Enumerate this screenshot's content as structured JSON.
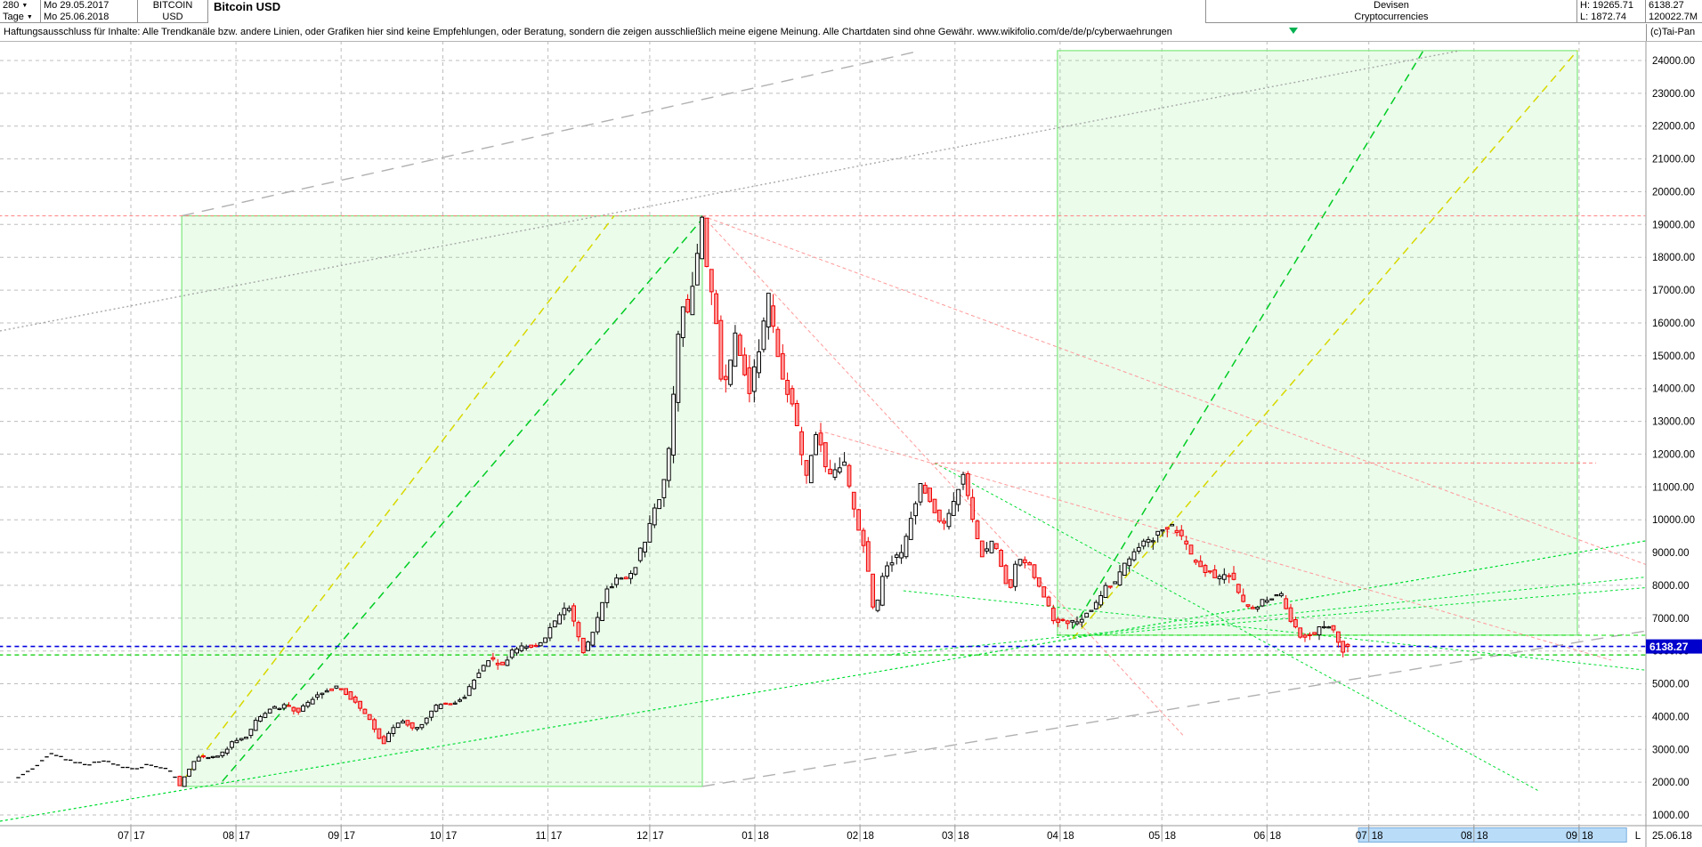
{
  "header": {
    "bars": "280",
    "period": "Tage",
    "date_from": "Mo 29.05.2017",
    "date_to": "Mo 25.06.2018",
    "symbol_line1": "BITCOIN",
    "symbol_line2": "USD",
    "title": "Bitcoin USD",
    "category_line1": "Devisen",
    "category_line2": "Cryptocurrencies",
    "high_label": "H: 19265.71",
    "low_label": "L: 1872.74",
    "last_price": "6138.27",
    "volume": "120022.7M",
    "copyright": "(c)Tai-Pan"
  },
  "disclaimer": "Haftungsausschluss für Inhalte: Alle Trendkanäle bzw. andere Linien, oder Grafiken hier sind keine Empfehlungen, oder Beratung, sondern die zeigen ausschließlich meine eigene Meinung. Alle Chartdaten sind ohne Gewähr.  www.wikifolio.com/de/de/p/cyberwaehrungen",
  "y_axis": {
    "min": 1000,
    "max": 24000,
    "step": 1000,
    "decimals": 2,
    "price_tag": "6138.27"
  },
  "x_axis": {
    "months": [
      {
        "label": "07 17",
        "d": 0
      },
      {
        "label": "08 17",
        "d": 31
      },
      {
        "label": "09 17",
        "d": 62
      },
      {
        "label": "10 17",
        "d": 92
      },
      {
        "label": "11 17",
        "d": 123
      },
      {
        "label": "12 17",
        "d": 153
      },
      {
        "label": "01 18",
        "d": 184
      },
      {
        "label": "02 18",
        "d": 215
      },
      {
        "label": "03 18",
        "d": 243
      },
      {
        "label": "04 18",
        "d": 274
      },
      {
        "label": "05 18",
        "d": 304
      },
      {
        "label": "06 18",
        "d": 335
      },
      {
        "label": "07 18",
        "d": 365
      },
      {
        "label": "08 18",
        "d": 396
      },
      {
        "label": "09 18",
        "d": 427
      }
    ],
    "future_highlight": {
      "d1": 362,
      "d2": 441,
      "labels": [
        "07 18",
        "08 18",
        "09 18"
      ]
    },
    "scale_label": "L",
    "last_date": "25.06.18"
  },
  "chart_data": {
    "type": "candlestick",
    "title": "Bitcoin USD",
    "instrument": "BITCOIN USD",
    "bars": 280,
    "range_high": 19265.71,
    "range_low": 1872.74,
    "last_close": 6138.27,
    "x_unit": "days since 2017-07-01 (weekday bars)",
    "ylim": [
      1000,
      24000
    ],
    "grid": true,
    "keyframes": [
      [
        -33,
        2150
      ],
      [
        -28,
        2420
      ],
      [
        -23,
        2880
      ],
      [
        -19,
        2750
      ],
      [
        -16,
        2620
      ],
      [
        -12,
        2560
      ],
      [
        -8,
        2680
      ],
      [
        -5,
        2590
      ],
      [
        -2,
        2480
      ],
      [
        2,
        2420
      ],
      [
        6,
        2560
      ],
      [
        10,
        2450
      ],
      [
        13,
        2320
      ],
      [
        15,
        1873
      ],
      [
        17,
        2250
      ],
      [
        20,
        2780
      ],
      [
        24,
        2760
      ],
      [
        27,
        2810
      ],
      [
        31,
        3250
      ],
      [
        35,
        3430
      ],
      [
        38,
        3950
      ],
      [
        41,
        4180
      ],
      [
        46,
        4350
      ],
      [
        50,
        4150
      ],
      [
        55,
        4620
      ],
      [
        59,
        4820
      ],
      [
        62,
        4920
      ],
      [
        65,
        4620
      ],
      [
        69,
        4200
      ],
      [
        72,
        3750
      ],
      [
        75,
        3150
      ],
      [
        78,
        3680
      ],
      [
        81,
        3850
      ],
      [
        84,
        3650
      ],
      [
        87,
        3800
      ],
      [
        90,
        4250
      ],
      [
        92,
        4380
      ],
      [
        96,
        4420
      ],
      [
        99,
        4610
      ],
      [
        103,
        5350
      ],
      [
        106,
        5740
      ],
      [
        110,
        5580
      ],
      [
        113,
        5950
      ],
      [
        116,
        6120
      ],
      [
        120,
        6180
      ],
      [
        123,
        6470
      ],
      [
        127,
        7090
      ],
      [
        130,
        7380
      ],
      [
        132,
        6650
      ],
      [
        134,
        5950
      ],
      [
        137,
        6550
      ],
      [
        141,
        7950
      ],
      [
        144,
        8150
      ],
      [
        148,
        8250
      ],
      [
        151,
        9050
      ],
      [
        154,
        9850
      ],
      [
        157,
        10900
      ],
      [
        159,
        11700
      ],
      [
        161,
        14100
      ],
      [
        163,
        16700
      ],
      [
        165,
        16300
      ],
      [
        167,
        17600
      ],
      [
        169,
        19100
      ],
      [
        170,
        18200
      ],
      [
        172,
        16800
      ],
      [
        174,
        15700
      ],
      [
        175,
        13900
      ],
      [
        177,
        14400
      ],
      [
        179,
        15750
      ],
      [
        181,
        14900
      ],
      [
        183,
        13950
      ],
      [
        186,
        15150
      ],
      [
        189,
        16900
      ],
      [
        191,
        15200
      ],
      [
        193,
        14300
      ],
      [
        196,
        13500
      ],
      [
        199,
        11600
      ],
      [
        200,
        11200
      ],
      [
        203,
        12850
      ],
      [
        206,
        11300
      ],
      [
        209,
        11500
      ],
      [
        211,
        11750
      ],
      [
        214,
        10150
      ],
      [
        217,
        9150
      ],
      [
        220,
        6950
      ],
      [
        222,
        8150
      ],
      [
        224,
        8750
      ],
      [
        228,
        8900
      ],
      [
        231,
        10150
      ],
      [
        234,
        11200
      ],
      [
        237,
        10350
      ],
      [
        240,
        9650
      ],
      [
        243,
        10450
      ],
      [
        246,
        11450
      ],
      [
        249,
        9850
      ],
      [
        252,
        8850
      ],
      [
        255,
        9350
      ],
      [
        258,
        8250
      ],
      [
        260,
        7850
      ],
      [
        262,
        8950
      ],
      [
        265,
        8700
      ],
      [
        268,
        8150
      ],
      [
        271,
        7350
      ],
      [
        273,
        6950
      ],
      [
        276,
        6830
      ],
      [
        279,
        6920
      ],
      [
        282,
        7080
      ],
      [
        285,
        7420
      ],
      [
        288,
        7920
      ],
      [
        291,
        8050
      ],
      [
        295,
        8870
      ],
      [
        298,
        9250
      ],
      [
        301,
        9340
      ],
      [
        304,
        9700
      ],
      [
        307,
        9830
      ],
      [
        311,
        9350
      ],
      [
        314,
        8710
      ],
      [
        318,
        8420
      ],
      [
        321,
        8250
      ],
      [
        325,
        8370
      ],
      [
        328,
        7520
      ],
      [
        331,
        7320
      ],
      [
        334,
        7470
      ],
      [
        337,
        7640
      ],
      [
        340,
        7680
      ],
      [
        343,
        6840
      ],
      [
        346,
        6390
      ],
      [
        349,
        6520
      ],
      [
        352,
        6710
      ],
      [
        355,
        6690
      ],
      [
        357,
        6150
      ],
      [
        358,
        5920
      ],
      [
        359,
        6138.27
      ]
    ],
    "annotations": {
      "boxes": [
        {
          "name": "rally-channel-2017",
          "d1": 15,
          "d2": 168.5,
          "v1": 1872.74,
          "v2": 19265.71
        },
        {
          "name": "projection-zone-2018",
          "d1": 273.2,
          "d2": 426.5,
          "v1": 6480,
          "v2": 24300
        }
      ],
      "hlines": [
        {
          "name": "high-19265",
          "v": 19265.71,
          "d1": -39,
          "d2": 446.5,
          "color": "#ff8080",
          "dash": "4,3",
          "w": 1
        },
        {
          "name": "res-11730",
          "v": 11730,
          "d1": 237,
          "d2": 432,
          "color": "#ff8080",
          "dash": "4,3",
          "w": 1
        },
        {
          "name": "last-price",
          "v": 6138.27,
          "d1": -39,
          "d2": 446.5,
          "color": "#0000dd",
          "dash": "5,4",
          "w": 1.6
        },
        {
          "name": "sup-5880",
          "v": 5880,
          "d1": -39,
          "d2": 446.5,
          "color": "#00cc00",
          "dash": "5,4",
          "w": 1.2
        },
        {
          "name": "sup-6480",
          "v": 6480,
          "d1": 273,
          "d2": 446.5,
          "color": "#00dd00",
          "dash": "5,4",
          "w": 1
        }
      ],
      "lines": [
        {
          "name": "support-longterm",
          "d1": -38.6,
          "v1": 810,
          "d2": 463.3,
          "v2": 9650,
          "color": "#00dd33",
          "dash": "3,3",
          "w": 1.2
        },
        {
          "name": "support-feb-low",
          "d1": 222.8,
          "v1": 5880,
          "d2": 463.3,
          "v2": 8430,
          "color": "#00dd33",
          "dash": "3,3",
          "w": 1
        },
        {
          "name": "support-apr-low",
          "d1": 277.7,
          "v1": 6425,
          "d2": 463.3,
          "v2": 8080,
          "color": "#00dd33",
          "dash": "3,3",
          "w": 1
        },
        {
          "name": "downline-mar-peak",
          "d1": 237,
          "v1": 11730,
          "d2": 415.5,
          "v2": 1710,
          "color": "#00dd33",
          "dash": "3,3",
          "w": 1
        },
        {
          "name": "downline-flat",
          "d1": 227.8,
          "v1": 7835,
          "d2": 463.3,
          "v2": 5230,
          "color": "#00dd33",
          "dash": "3,3",
          "w": 1
        },
        {
          "name": "rally-trend-yellow",
          "d1": 15.2,
          "v1": 2030,
          "d2": 142.5,
          "v2": 19265,
          "color": "#d8d800",
          "dash": "9,6",
          "w": 1.5
        },
        {
          "name": "rally-trend-green",
          "d1": 27,
          "v1": 2030,
          "d2": 168.5,
          "v2": 19170,
          "color": "#00cc22",
          "dash": "9,6",
          "w": 1.5
        },
        {
          "name": "proj-trend-yellow",
          "d1": 277.7,
          "v1": 6370,
          "d2": 426.5,
          "v2": 24300,
          "color": "#d8d800",
          "dash": "9,6",
          "w": 1.5
        },
        {
          "name": "proj-trend-green",
          "d1": 277.7,
          "v1": 6670,
          "d2": 381.1,
          "v2": 24300,
          "color": "#00cc22",
          "dash": "9,6",
          "w": 1.5
        },
        {
          "name": "gray-upper-channel",
          "d1": 15,
          "v1": 19265,
          "d2": 233,
          "v2": 24300,
          "color": "#b0b0b0",
          "dash": "14,9",
          "w": 1.4
        },
        {
          "name": "gray-dotted-rise",
          "d1": -38.6,
          "v1": 15755,
          "d2": 391.9,
          "v2": 24300,
          "color": "#a8a8a8",
          "dash": "2,3",
          "w": 1.4
        },
        {
          "name": "gray-lower-channel",
          "d1": 168.5,
          "v1": 1872,
          "d2": 463.3,
          "v2": 6890,
          "color": "#b0b0b0",
          "dash": "14,9",
          "w": 1.4
        },
        {
          "name": "fan-steep",
          "d1": 168.5,
          "v1": 19265,
          "d2": 310.5,
          "v2": 3400,
          "color": "#ff9999",
          "dash": "4,3",
          "w": 1
        },
        {
          "name": "fan-mid",
          "d1": 202.9,
          "v1": 12720,
          "d2": 436.5,
          "v2": 5720,
          "color": "#ff9999",
          "dash": "4,3",
          "w": 1
        },
        {
          "name": "fan-shallow",
          "d1": 168.5,
          "v1": 19265,
          "d2": 463.3,
          "v2": 8000,
          "color": "#ff9999",
          "dash": "4,3",
          "w": 1
        }
      ]
    }
  },
  "colors": {
    "up_body": "#ffffff",
    "up_border": "#000000",
    "down_body": "#ff9a9a",
    "down_border": "#f00000",
    "grid": "#bdbdbd",
    "axis_line": "#9a9a9a",
    "box_fill": "rgba(130,235,130,0.16)",
    "box_stroke": "#7de87d",
    "price_tag_bg": "#0000cd",
    "price_tag_text": "#ffffff",
    "future_band_fill": "#b9dcf9",
    "future_band_stroke": "#7aaede"
  }
}
